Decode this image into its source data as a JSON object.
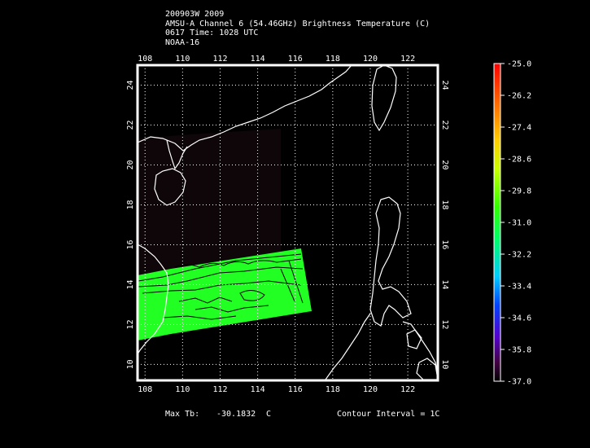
{
  "header": {
    "line1": "200903W 2009",
    "line2": "AMSU-A Channel 6 (54.46GHz) Brightness Temperature (C)",
    "line3": "0617 Time: 1028 UTC",
    "line4": "NOAA-16"
  },
  "map": {
    "lon_ticks": [
      "108",
      "110",
      "112",
      "114",
      "116",
      "118",
      "120",
      "122"
    ],
    "lat_ticks": [
      "10",
      "12",
      "14",
      "16",
      "18",
      "20",
      "22",
      "24"
    ],
    "lon_range": [
      107.6,
      123.6
    ],
    "lat_range": [
      9.2,
      25.0
    ]
  },
  "colorbar": {
    "labels": [
      "-25.0",
      "-26.2",
      "-27.4",
      "-28.6",
      "-29.8",
      "-31.0",
      "-32.2",
      "-33.4",
      "-34.6",
      "-35.8",
      "-37.0"
    ],
    "colors": [
      "#ff0000",
      "#ff6600",
      "#ffcc00",
      "#ccff00",
      "#33ff00",
      "#00ff66",
      "#00ccff",
      "#0044ff",
      "#5500cc",
      "#440044",
      "#000000"
    ]
  },
  "footer": {
    "max_tb_label": "Max Tb:",
    "max_tb_value": "-30.1832",
    "max_tb_unit": "C",
    "contour_interval": "Contour Interval = 1C"
  }
}
